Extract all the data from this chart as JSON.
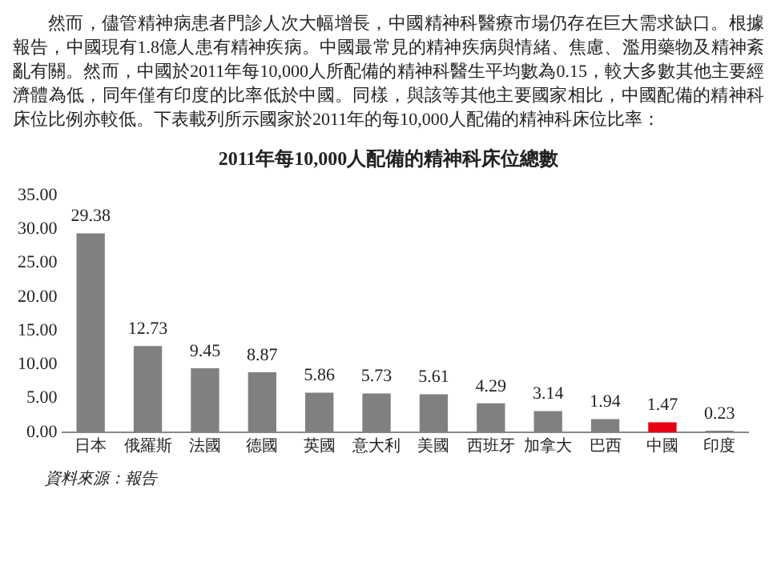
{
  "chart_data": {
    "type": "bar",
    "title": "2011年每10,000人配備的精神科床位總數",
    "annotations": [
      "然而，儘管精神病患者門診人次大幅增長，中國精神科醫療市場仍存在巨大需求缺口。根據報告，中國現有1.8億人患有精神疾病。中國最常見的精神疾病與情緒、焦慮、濫用藥物及精神紊亂有關。然而，中國於2011年每10,000人所配備的精神科醫生平均數為0.15，較大多數其他主要經濟體為低，同年僅有印度的比率低於中國。同樣，與該等其他主要國家相比，中國配備的精神科床位比例亦較低。下表載列所示國家於2011年的每10,000人配備的精神科床位比率：",
      "資料來源：報告"
    ],
    "categories": [
      "日本",
      "俄羅斯",
      "法國",
      "德國",
      "英國",
      "意大利",
      "美國",
      "西班牙",
      "加拿大",
      "巴西",
      "中國",
      "印度"
    ],
    "values": [
      29.38,
      12.73,
      9.45,
      8.87,
      5.86,
      5.73,
      5.61,
      4.29,
      3.14,
      1.94,
      1.47,
      0.23
    ],
    "colors": [
      "#808080",
      "#808080",
      "#808080",
      "#808080",
      "#808080",
      "#808080",
      "#808080",
      "#808080",
      "#808080",
      "#808080",
      "#e60012",
      "#808080"
    ],
    "ylim": [
      0,
      35
    ],
    "yticks": [
      {
        "value": 0,
        "label": "0.00"
      },
      {
        "value": 5,
        "label": "5.00"
      },
      {
        "value": 10,
        "label": "10.00"
      },
      {
        "value": 15,
        "label": "15.00"
      },
      {
        "value": 20,
        "label": "20.00"
      },
      {
        "value": 25,
        "label": "25.00"
      },
      {
        "value": 30,
        "label": "30.00"
      },
      {
        "value": 35,
        "label": "35.00"
      }
    ],
    "grid": false,
    "data_labels": true
  }
}
